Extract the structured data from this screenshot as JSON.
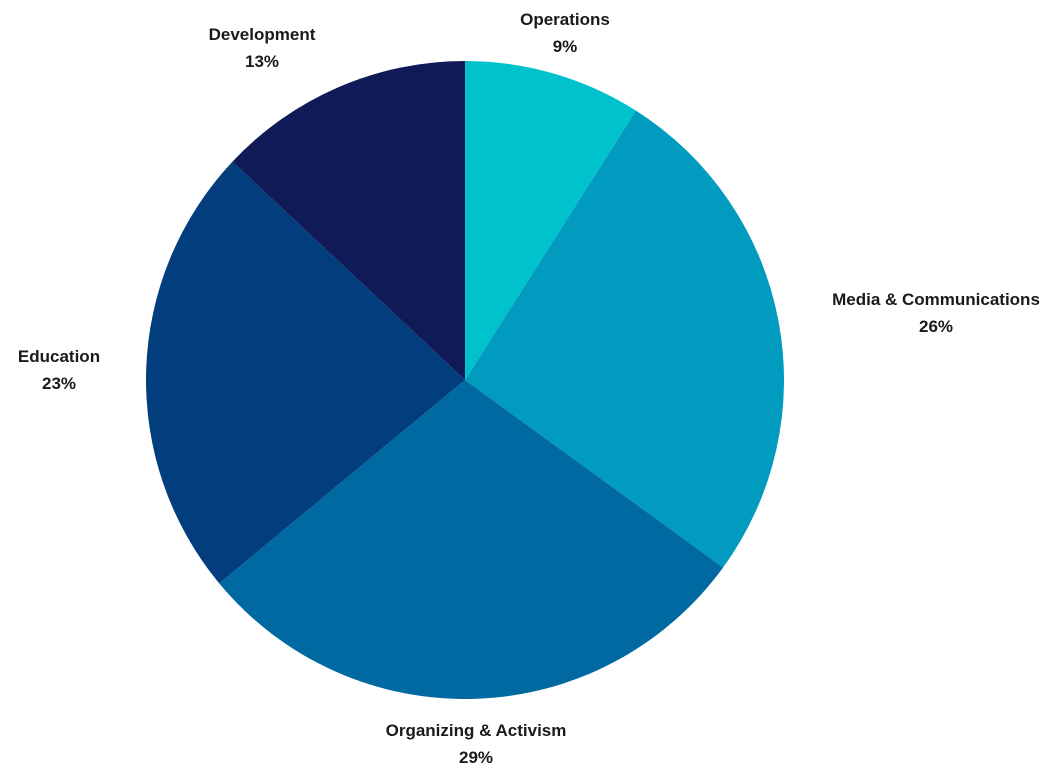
{
  "chart_data": {
    "type": "pie",
    "title": "",
    "legend": "none",
    "slices": [
      {
        "label": "Operations",
        "value": 9,
        "value_label": "9%",
        "color": "#00C2CC"
      },
      {
        "label": "Media & Communications",
        "value": 26,
        "value_label": "26%",
        "color": "#009BBF"
      },
      {
        "label": "Organizing & Activism",
        "value": 29,
        "value_label": "29%",
        "color": "#0069A1"
      },
      {
        "label": "Education",
        "value": 23,
        "value_label": "23%",
        "color": "#023E7D"
      },
      {
        "label": "Development",
        "value": 13,
        "value_label": "13%",
        "color": "#101A56"
      }
    ]
  }
}
